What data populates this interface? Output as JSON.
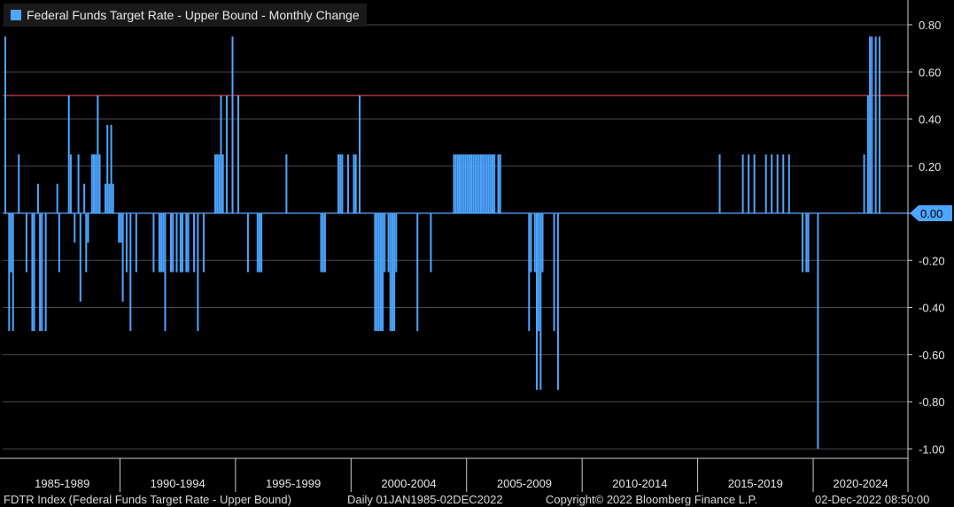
{
  "chart_data": {
    "type": "bar",
    "title": "",
    "legend": [
      {
        "name": "Federal Funds Target Rate - Upper Bound - Monthly Change",
        "color": "#4da6ff"
      }
    ],
    "ylim": [
      -1.05,
      0.9
    ],
    "yticks": [
      "0.80",
      "0.60",
      "0.40",
      "0.20",
      "0.00",
      "-0.20",
      "-0.40",
      "-0.60",
      "-0.80",
      "-1.00"
    ],
    "ytick_values": [
      0.8,
      0.6,
      0.4,
      0.2,
      0.0,
      -0.2,
      -0.4,
      -0.6,
      -0.8,
      -1.0
    ],
    "x_range": [
      1985.0,
      2022.95
    ],
    "x_categories": [
      "1985-1989",
      "1990-1994",
      "1995-1999",
      "2000-2004",
      "2005-2009",
      "2010-2014",
      "2015-2019",
      "2020-2024"
    ],
    "x_category_starts": [
      1985,
      1990,
      1995,
      2000,
      2005,
      2010,
      2015,
      2020
    ],
    "reference_line": {
      "value": 0.5,
      "color": "#ff4d5a"
    },
    "current_value": {
      "label": "0.00",
      "value": 0.0
    },
    "grid": "horizontal",
    "legend_position": "top-left",
    "series": [
      {
        "name": "Federal Funds Target Rate - Upper Bound - Monthly Change",
        "color": "#4da6ff",
        "points": [
          {
            "date": "1985-01",
            "value": 0.75
          },
          {
            "date": "1985-03",
            "value": -0.5
          },
          {
            "date": "1985-04",
            "value": -0.25
          },
          {
            "date": "1985-05",
            "value": -0.5
          },
          {
            "date": "1985-08",
            "value": 0.25
          },
          {
            "date": "1985-12",
            "value": -0.25
          },
          {
            "date": "1986-03",
            "value": -0.5
          },
          {
            "date": "1986-04",
            "value": -0.5
          },
          {
            "date": "1986-06",
            "value": 0.125
          },
          {
            "date": "1986-07",
            "value": -0.5
          },
          {
            "date": "1986-08",
            "value": -0.5
          },
          {
            "date": "1986-10",
            "value": -0.5
          },
          {
            "date": "1987-04",
            "value": 0.125
          },
          {
            "date": "1987-05",
            "value": -0.25
          },
          {
            "date": "1987-10",
            "value": 0.5
          },
          {
            "date": "1987-11",
            "value": 0.25
          },
          {
            "date": "1988-01",
            "value": -0.125
          },
          {
            "date": "1988-03",
            "value": 0.25
          },
          {
            "date": "1988-04",
            "value": -0.375
          },
          {
            "date": "1988-06",
            "value": 0.125
          },
          {
            "date": "1988-07",
            "value": -0.25
          },
          {
            "date": "1988-08",
            "value": -0.125
          },
          {
            "date": "1988-10",
            "value": 0.25
          },
          {
            "date": "1988-11",
            "value": 0.25
          },
          {
            "date": "1988-12",
            "value": 0.25
          },
          {
            "date": "1989-01",
            "value": 0.5
          },
          {
            "date": "1989-02",
            "value": 0.25
          },
          {
            "date": "1989-05",
            "value": 0.125
          },
          {
            "date": "1989-06",
            "value": 0.375
          },
          {
            "date": "1989-07",
            "value": 0.125
          },
          {
            "date": "1989-08",
            "value": 0.375
          },
          {
            "date": "1989-09",
            "value": 0.125
          },
          {
            "date": "1989-12",
            "value": -0.125
          },
          {
            "date": "1990-01",
            "value": -0.125
          },
          {
            "date": "1990-02",
            "value": -0.375
          },
          {
            "date": "1990-04",
            "value": -0.25
          },
          {
            "date": "1990-06",
            "value": -0.5
          },
          {
            "date": "1990-09",
            "value": -0.25
          },
          {
            "date": "1991-06",
            "value": -0.25
          },
          {
            "date": "1991-09",
            "value": -0.25
          },
          {
            "date": "1991-10",
            "value": -0.25
          },
          {
            "date": "1991-11",
            "value": -0.25
          },
          {
            "date": "1991-12",
            "value": -0.5
          },
          {
            "date": "1992-03",
            "value": -0.25
          },
          {
            "date": "1992-04",
            "value": -0.25
          },
          {
            "date": "1992-06",
            "value": -0.25
          },
          {
            "date": "1992-08",
            "value": -0.25
          },
          {
            "date": "1992-09",
            "value": -0.25
          },
          {
            "date": "1992-11",
            "value": -0.25
          },
          {
            "date": "1992-12",
            "value": -0.25
          },
          {
            "date": "1993-03",
            "value": -0.25
          },
          {
            "date": "1993-05",
            "value": -0.5
          },
          {
            "date": "1993-08",
            "value": -0.25
          },
          {
            "date": "1994-02",
            "value": 0.25
          },
          {
            "date": "1994-03",
            "value": 0.25
          },
          {
            "date": "1994-04",
            "value": 0.25
          },
          {
            "date": "1994-05",
            "value": 0.5
          },
          {
            "date": "1994-06",
            "value": 0.25
          },
          {
            "date": "1994-08",
            "value": 0.5
          },
          {
            "date": "1994-11",
            "value": 0.75
          },
          {
            "date": "1995-02",
            "value": 0.5
          },
          {
            "date": "1995-07",
            "value": -0.25
          },
          {
            "date": "1995-12",
            "value": -0.25
          },
          {
            "date": "1996-01",
            "value": -0.25
          },
          {
            "date": "1996-02",
            "value": -0.25
          },
          {
            "date": "1997-03",
            "value": 0.25
          },
          {
            "date": "1998-09",
            "value": -0.25
          },
          {
            "date": "1998-10",
            "value": -0.25
          },
          {
            "date": "1998-11",
            "value": -0.25
          },
          {
            "date": "1999-06",
            "value": 0.25
          },
          {
            "date": "1999-07",
            "value": 0.25
          },
          {
            "date": "1999-08",
            "value": 0.25
          },
          {
            "date": "1999-11",
            "value": 0.25
          },
          {
            "date": "2000-02",
            "value": 0.25
          },
          {
            "date": "2000-03",
            "value": 0.25
          },
          {
            "date": "2000-05",
            "value": 0.5
          },
          {
            "date": "2001-01",
            "value": -0.5
          },
          {
            "date": "2001-02",
            "value": -0.5
          },
          {
            "date": "2001-03",
            "value": -0.5
          },
          {
            "date": "2001-04",
            "value": -0.5
          },
          {
            "date": "2001-05",
            "value": -0.5
          },
          {
            "date": "2001-06",
            "value": -0.25
          },
          {
            "date": "2001-08",
            "value": -0.25
          },
          {
            "date": "2001-09",
            "value": -0.5
          },
          {
            "date": "2001-10",
            "value": -0.5
          },
          {
            "date": "2001-11",
            "value": -0.5
          },
          {
            "date": "2001-12",
            "value": -0.25
          },
          {
            "date": "2002-11",
            "value": -0.5
          },
          {
            "date": "2003-06",
            "value": -0.25
          },
          {
            "date": "2004-06",
            "value": 0.25
          },
          {
            "date": "2004-07",
            "value": 0.25
          },
          {
            "date": "2004-08",
            "value": 0.25
          },
          {
            "date": "2004-09",
            "value": 0.25
          },
          {
            "date": "2004-10",
            "value": 0.25
          },
          {
            "date": "2004-11",
            "value": 0.25
          },
          {
            "date": "2004-12",
            "value": 0.25
          },
          {
            "date": "2005-01",
            "value": 0.25
          },
          {
            "date": "2005-02",
            "value": 0.25
          },
          {
            "date": "2005-03",
            "value": 0.25
          },
          {
            "date": "2005-04",
            "value": 0.25
          },
          {
            "date": "2005-05",
            "value": 0.25
          },
          {
            "date": "2005-06",
            "value": 0.25
          },
          {
            "date": "2005-07",
            "value": 0.25
          },
          {
            "date": "2005-08",
            "value": 0.25
          },
          {
            "date": "2005-09",
            "value": 0.25
          },
          {
            "date": "2005-10",
            "value": 0.25
          },
          {
            "date": "2005-11",
            "value": 0.25
          },
          {
            "date": "2005-12",
            "value": 0.25
          },
          {
            "date": "2006-01",
            "value": 0.25
          },
          {
            "date": "2006-02",
            "value": 0.25
          },
          {
            "date": "2006-03",
            "value": 0.25
          },
          {
            "date": "2006-05",
            "value": 0.25
          },
          {
            "date": "2006-06",
            "value": 0.25
          },
          {
            "date": "2007-09",
            "value": -0.5
          },
          {
            "date": "2007-10",
            "value": -0.25
          },
          {
            "date": "2007-12",
            "value": -0.25
          },
          {
            "date": "2008-01",
            "value": -0.75
          },
          {
            "date": "2008-02",
            "value": -0.5
          },
          {
            "date": "2008-03",
            "value": -0.75
          },
          {
            "date": "2008-04",
            "value": -0.25
          },
          {
            "date": "2008-10",
            "value": -0.5
          },
          {
            "date": "2008-12",
            "value": -0.75
          },
          {
            "date": "2015-12",
            "value": 0.25
          },
          {
            "date": "2016-12",
            "value": 0.25
          },
          {
            "date": "2017-03",
            "value": 0.25
          },
          {
            "date": "2017-06",
            "value": 0.25
          },
          {
            "date": "2017-12",
            "value": 0.25
          },
          {
            "date": "2018-03",
            "value": 0.25
          },
          {
            "date": "2018-06",
            "value": 0.25
          },
          {
            "date": "2018-09",
            "value": 0.25
          },
          {
            "date": "2018-12",
            "value": 0.25
          },
          {
            "date": "2019-07",
            "value": -0.25
          },
          {
            "date": "2019-09",
            "value": -0.25
          },
          {
            "date": "2019-10",
            "value": -0.25
          },
          {
            "date": "2020-03",
            "value": -1.0
          },
          {
            "date": "2022-03",
            "value": 0.25
          },
          {
            "date": "2022-05",
            "value": 0.5
          },
          {
            "date": "2022-06",
            "value": 0.75
          },
          {
            "date": "2022-07",
            "value": 0.75
          },
          {
            "date": "2022-09",
            "value": 0.75
          },
          {
            "date": "2022-11",
            "value": 0.75
          }
        ]
      }
    ]
  },
  "footer": {
    "index": "FDTR Index (Federal Funds Target Rate - Upper Bound)",
    "range": "Daily 01JAN1985-02DEC2022",
    "copyright": "Copyright© 2022 Bloomberg Finance L.P.",
    "timestamp": "02-Dec-2022 08:50:00"
  }
}
